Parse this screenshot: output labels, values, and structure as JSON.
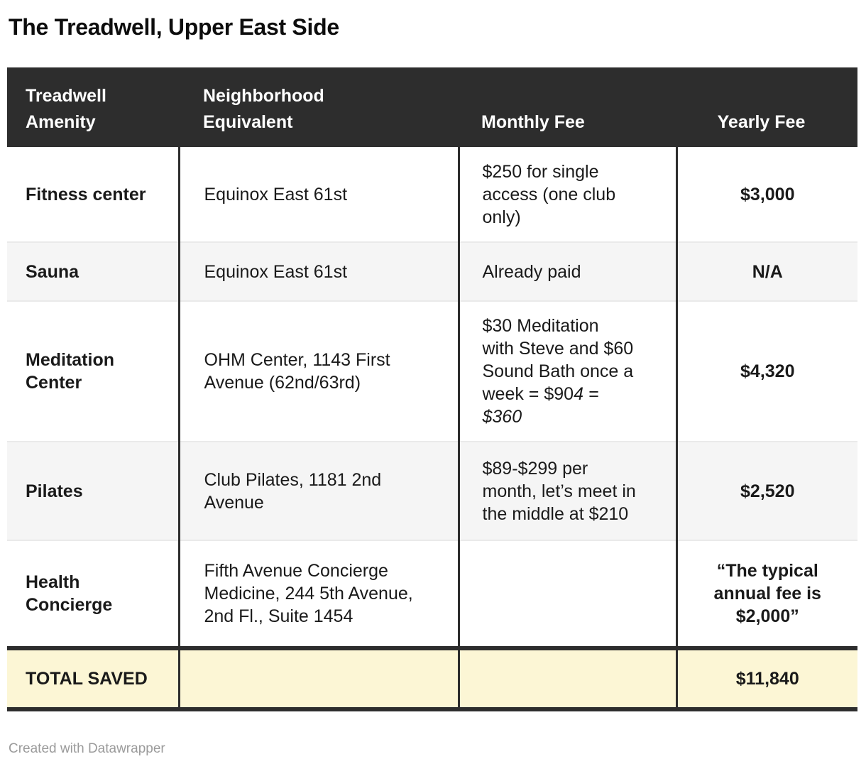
{
  "page": {
    "title": "The Treadwell, Upper East Side",
    "footer": "Created with Datawrapper"
  },
  "colors": {
    "header_bg": "#2d2d2d",
    "divider_dark": "#2d2d2d",
    "row_alt_bg": "#f5f5f5",
    "row_separator": "#eaeaea",
    "total_row_bg": "#fcf6d5",
    "footer_text": "#9b9b9b"
  },
  "table": {
    "columns": [
      {
        "key": "amenity",
        "label": "Treadwell\nAmenity"
      },
      {
        "key": "equivalent",
        "label": "Neighborhood\nEquivalent"
      },
      {
        "key": "monthly",
        "label": "Monthly Fee"
      },
      {
        "key": "yearly",
        "label": "Yearly Fee"
      }
    ],
    "rows": [
      {
        "amenity": "Fitness center",
        "equivalent": "Equinox East 61st",
        "monthly": [
          {
            "text": "$250 for single\naccess (one club\nonly)",
            "italic": false
          }
        ],
        "yearly": "$3,000"
      },
      {
        "amenity": "Sauna",
        "equivalent": "Equinox East 61st",
        "monthly": [
          {
            "text": "Already paid",
            "italic": false
          }
        ],
        "yearly": "N/A"
      },
      {
        "amenity": "Meditation\nCenter",
        "equivalent": "OHM Center, 1143 First\nAvenue (62nd/63rd)",
        "monthly": [
          {
            "text": "$30 Meditation\nwith Steve and $60\nSound Bath once a\nweek = $90",
            "italic": false
          },
          {
            "text": "4 =\n$360",
            "italic": true
          }
        ],
        "yearly": "$4,320"
      },
      {
        "amenity": "Pilates",
        "equivalent": "Club Pilates, 1181 2nd\nAvenue",
        "monthly": [
          {
            "text": "$89-$299 per\nmonth, let’s meet in\nthe middle at $210",
            "italic": false
          }
        ],
        "yearly": "$2,520"
      },
      {
        "amenity": "Health\nConcierge",
        "equivalent": "Fifth Avenue Concierge\nMedicine, 244 5th Avenue,\n2nd Fl., Suite 1454",
        "monthly": [],
        "yearly": "“The typical\nannual fee is\n$2,000”"
      }
    ],
    "total_row": {
      "amenity": "TOTAL SAVED",
      "equivalent": "",
      "monthly": "",
      "yearly": "$11,840"
    }
  },
  "chart_data": {
    "type": "table",
    "title": "The Treadwell, Upper East Side",
    "columns": [
      "Treadwell Amenity",
      "Neighborhood Equivalent",
      "Monthly Fee",
      "Yearly Fee"
    ],
    "rows": [
      [
        "Fitness center",
        "Equinox East 61st",
        "$250 for single access (one club only)",
        "$3,000"
      ],
      [
        "Sauna",
        "Equinox East 61st",
        "Already paid",
        "N/A"
      ],
      [
        "Meditation Center",
        "OHM Center, 1143 First Avenue (62nd/63rd)",
        "$30 Meditation with Steve and $60 Sound Bath once a week = $904 = $360",
        "$4,320"
      ],
      [
        "Pilates",
        "Club Pilates, 1181 2nd Avenue",
        "$89-$299 per month, let’s meet in the middle at $210",
        "$2,520"
      ],
      [
        "Health Concierge",
        "Fifth Avenue Concierge Medicine, 244 5th Avenue, 2nd Fl., Suite 1454",
        "",
        "“The typical annual fee is $2,000”"
      ]
    ],
    "total": [
      "TOTAL SAVED",
      "",
      "",
      "$11,840"
    ],
    "attribution": "Created with Datawrapper",
    "layout_hints": {
      "header_style": "dark",
      "total_row_highlight": "yellow",
      "column_dividers": true,
      "zebra_stripes": true
    }
  }
}
